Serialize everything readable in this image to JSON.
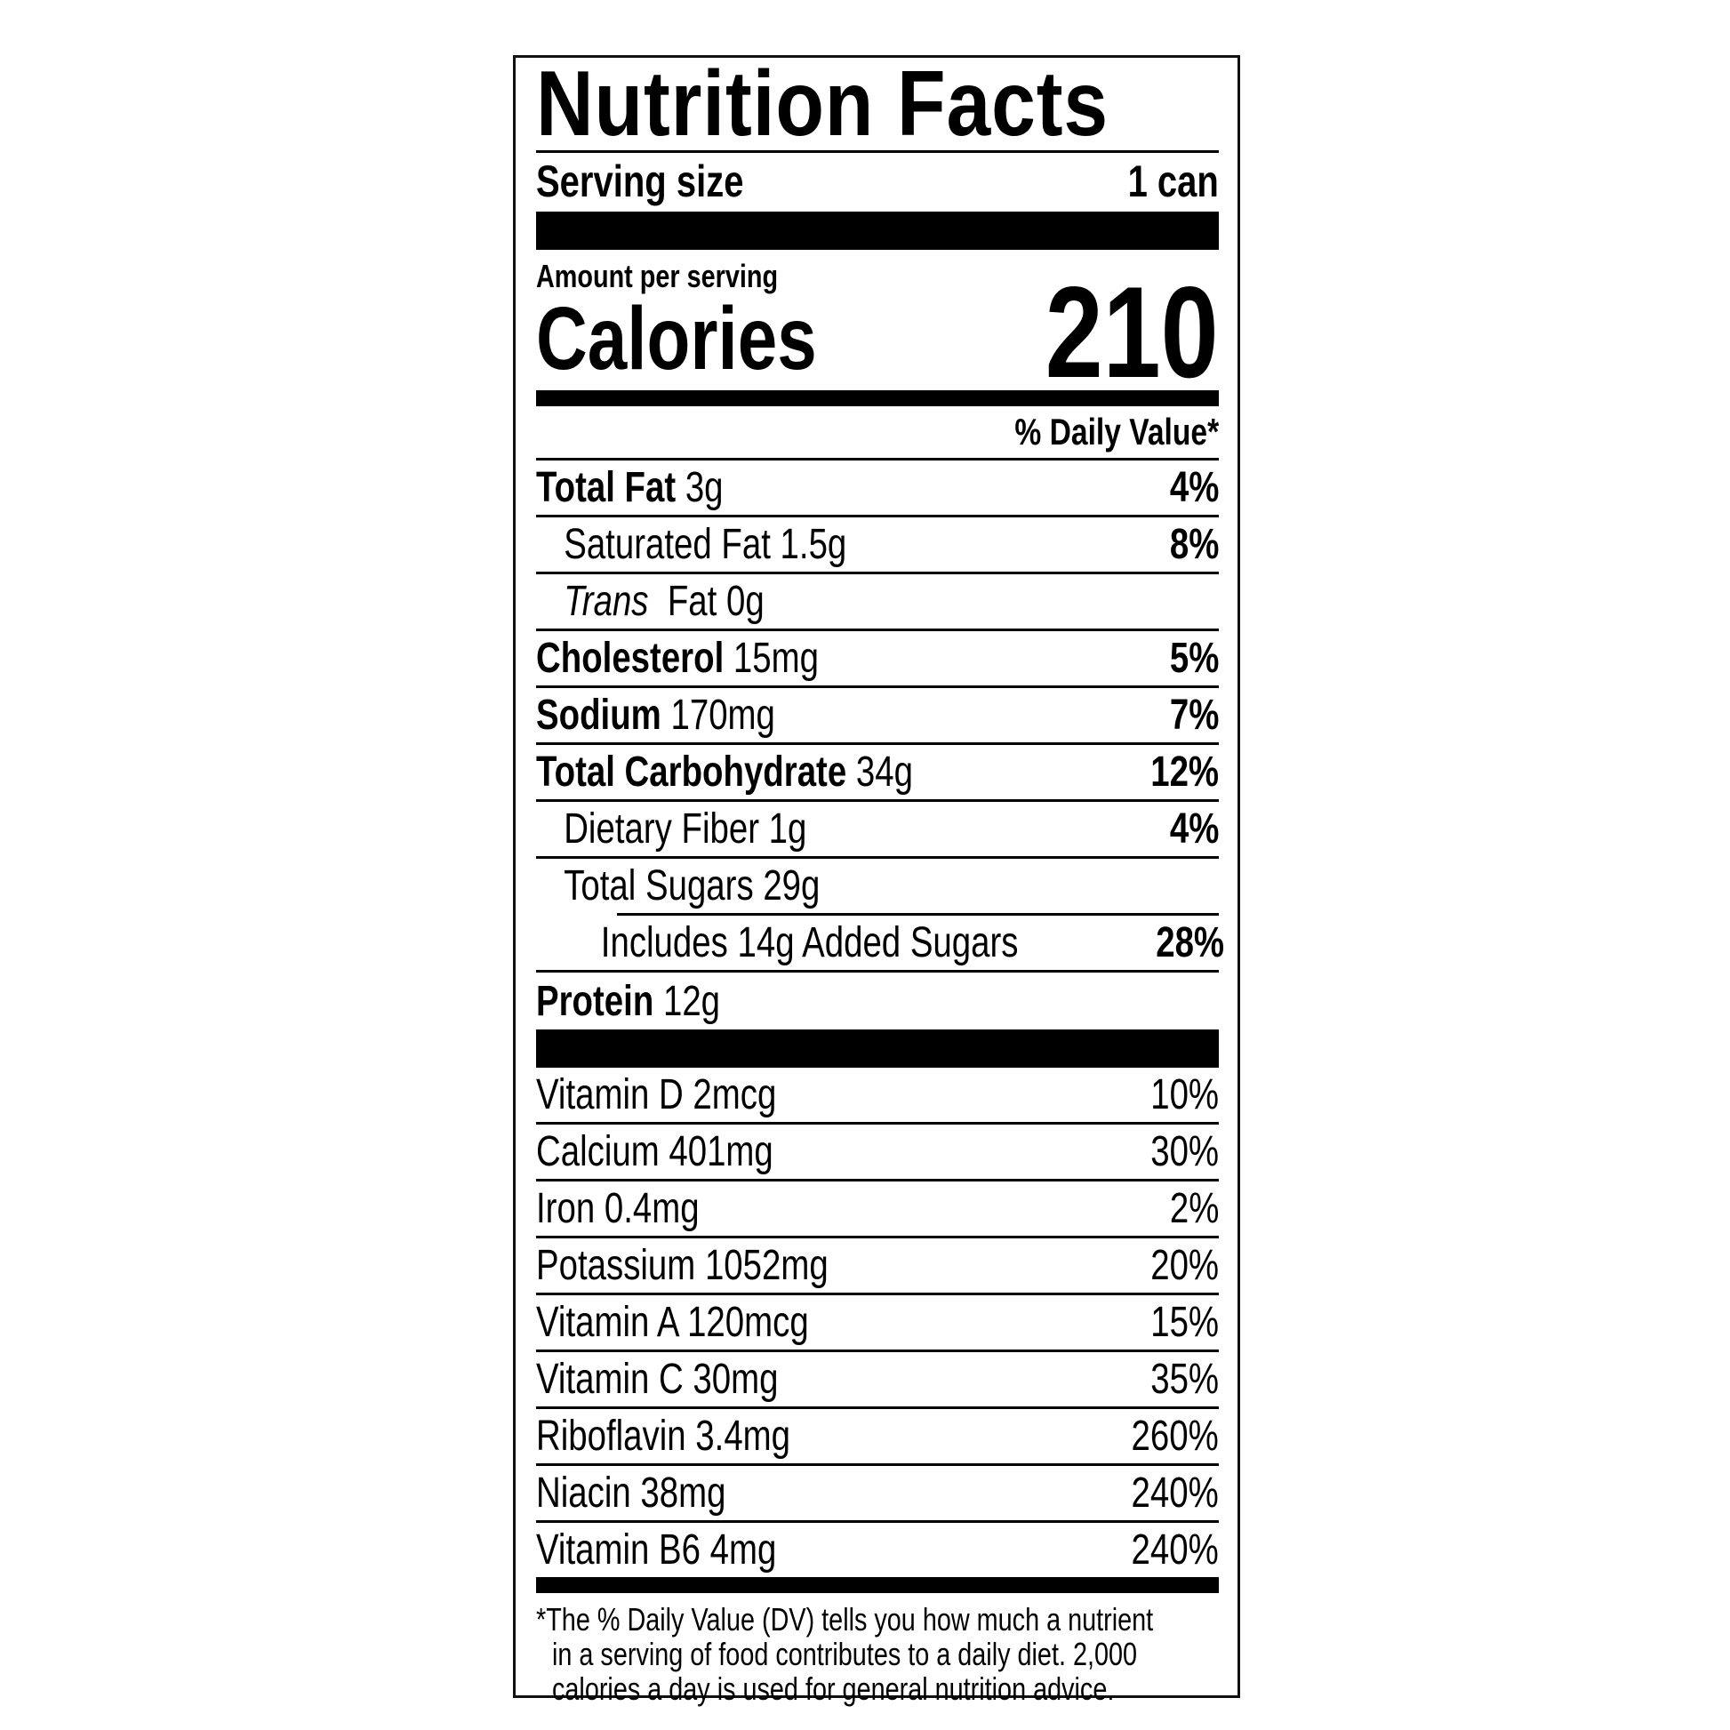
{
  "title": "Nutrition Facts",
  "serving": {
    "label": "Serving size",
    "value": "1 can"
  },
  "amount_per_serving": "Amount per serving",
  "calories": {
    "label": "Calories",
    "value": "210"
  },
  "daily_value_header": "% Daily Value*",
  "nutrients": [
    {
      "name": "Total Fat",
      "amount": "3g",
      "dv": "4%"
    },
    {
      "name": "Saturated Fat",
      "amount": "1.5g",
      "dv": "8%"
    },
    {
      "name": "Trans",
      "amount": "Fat 0g",
      "dv": ""
    },
    {
      "name": "Cholesterol",
      "amount": "15mg",
      "dv": "5%"
    },
    {
      "name": "Sodium",
      "amount": "170mg",
      "dv": "7%"
    },
    {
      "name": "Total Carbohydrate",
      "amount": "34g",
      "dv": "12%"
    },
    {
      "name": "Dietary Fiber",
      "amount": "1g",
      "dv": "4%"
    },
    {
      "name": "Total Sugars",
      "amount": "29g",
      "dv": ""
    },
    {
      "name": "Includes 14g Added Sugars",
      "amount": "",
      "dv": "28%"
    },
    {
      "name": "Protein",
      "amount": "12g",
      "dv": ""
    }
  ],
  "vitamins": [
    {
      "label": "Vitamin D 2mcg",
      "dv": "10%"
    },
    {
      "label": "Calcium 401mg",
      "dv": "30%"
    },
    {
      "label": "Iron 0.4mg",
      "dv": "2%"
    },
    {
      "label": "Potassium 1052mg",
      "dv": "20%"
    },
    {
      "label": "Vitamin A 120mcg",
      "dv": "15%"
    },
    {
      "label": "Vitamin C 30mg",
      "dv": "35%"
    },
    {
      "label": "Riboflavin 3.4mg",
      "dv": "260%"
    },
    {
      "label": "Niacin 38mg",
      "dv": "240%"
    },
    {
      "label": "Vitamin B6 4mg",
      "dv": "240%"
    }
  ],
  "footnote": [
    "*The % Daily Value (DV) tells you how much a nutrient",
    "in a serving of food contributes to a daily diet. 2,000",
    "calories a day is used for general nutrition advice."
  ]
}
